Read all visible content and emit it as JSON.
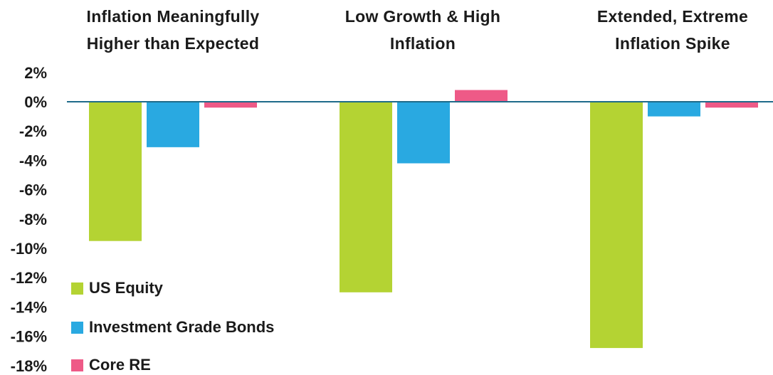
{
  "chart_data": {
    "type": "bar",
    "categories": [
      "Inflation Meaningfully\nHigher than Expected",
      "Low Growth & High\nInflation",
      "Extended, Extreme\nInflation Spike"
    ],
    "series": [
      {
        "name": "US Equity",
        "color": "#b4d333",
        "values": [
          -9.5,
          -13.0,
          -16.8
        ]
      },
      {
        "name": "Investment Grade Bonds",
        "color": "#29a9e1",
        "values": [
          -3.1,
          -4.2,
          -1.0
        ]
      },
      {
        "name": "Core RE",
        "color": "#ee5a87",
        "values": [
          -0.4,
          0.8,
          -0.4
        ]
      }
    ],
    "title": "",
    "xlabel": "",
    "ylabel": "",
    "ylim": [
      -18,
      2
    ],
    "yticks": [
      2,
      0,
      -2,
      -4,
      -6,
      -8,
      -10,
      -12,
      -14,
      -16,
      -18
    ],
    "ytick_labels": [
      "2%",
      "0%",
      "-2%",
      "-4%",
      "-6%",
      "-8%",
      "-10%",
      "-12%",
      "-14%",
      "-16%",
      "-18%"
    ],
    "zero_line_color": "#1f6b8a",
    "grid": false,
    "legend_position": "bottom-left"
  }
}
